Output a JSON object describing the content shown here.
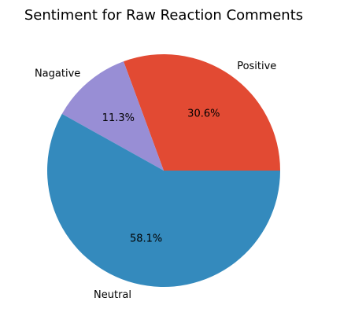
{
  "chart_data": {
    "type": "pie",
    "title": "Sentiment for Raw Reaction Comments",
    "labels": [
      "Positive",
      "Nagative",
      "Neutral"
    ],
    "values": [
      30.6,
      11.3,
      58.1
    ],
    "percent_labels": [
      "30.6%",
      "11.3%",
      "58.1%"
    ],
    "colors": [
      "#E24A33",
      "#988ED5",
      "#348ABD"
    ],
    "start_angle_deg": 0,
    "direction": "counterclockwise",
    "legend": "none",
    "grid": false
  }
}
